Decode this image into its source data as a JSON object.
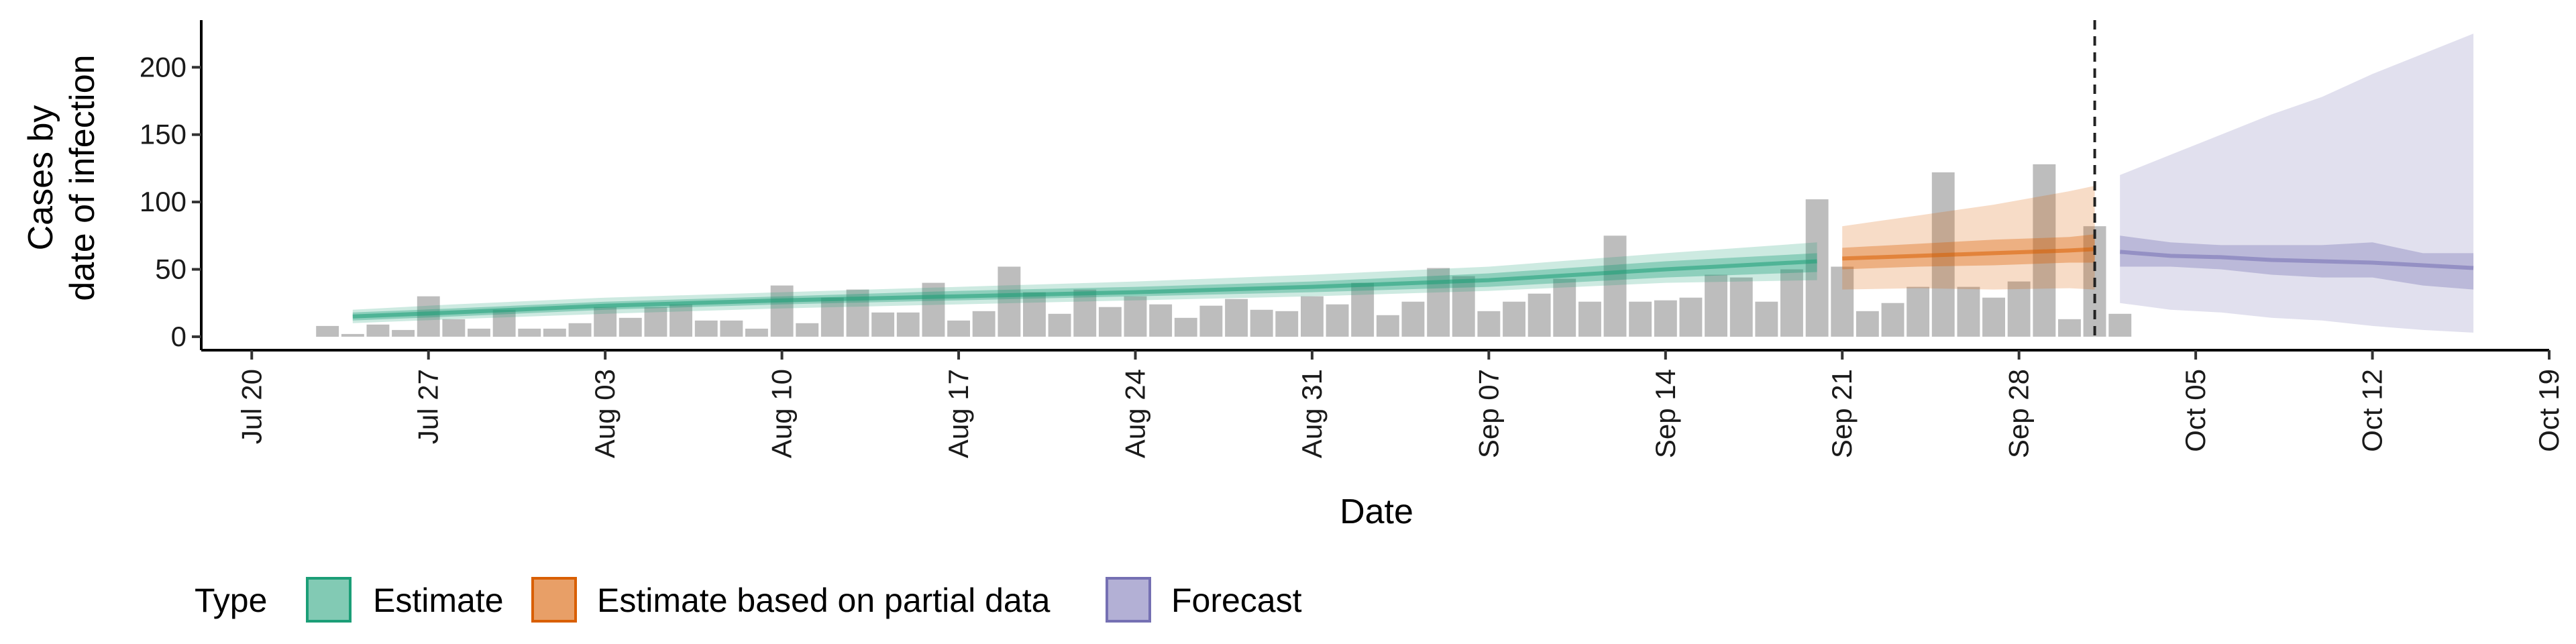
{
  "chart_data": {
    "type": "bar",
    "title": "",
    "xlabel": "Date",
    "ylabel_lines": [
      "Cases by",
      "date of infection"
    ],
    "x_ticks": [
      "Jul 20",
      "Jul 27",
      "Aug 03",
      "Aug 10",
      "Aug 17",
      "Aug 24",
      "Aug 31",
      "Sep 07",
      "Sep 14",
      "Sep 21",
      "Sep 28",
      "Oct 05",
      "Oct 12",
      "Oct 19"
    ],
    "y_ticks": [
      0,
      50,
      100,
      150,
      200
    ],
    "ylim": [
      -10,
      235
    ],
    "xlim": [
      "2020-07-18",
      "2020-10-19"
    ],
    "grid": false,
    "reference_line": {
      "date": "2020-10-01",
      "style": "dashed"
    },
    "colors": {
      "bars": "#bdbdbd",
      "estimate": "#1b9e77",
      "partial": "#d95f02",
      "forecast": "#7570b3"
    },
    "bars": {
      "start_date": "2020-07-23",
      "values": [
        8,
        2,
        9,
        5,
        30,
        13,
        6,
        20,
        6,
        6,
        10,
        22,
        14,
        22,
        24,
        12,
        12,
        6,
        38,
        10,
        29,
        35,
        18,
        18,
        40,
        12,
        19,
        52,
        33,
        17,
        35,
        22,
        30,
        24,
        14,
        23,
        28,
        20,
        19,
        30,
        24,
        40,
        16,
        26,
        51,
        45,
        19,
        26,
        32,
        43,
        26,
        75,
        26,
        27,
        29,
        46,
        44,
        26,
        50,
        102,
        52,
        19,
        25,
        37,
        122,
        37,
        29,
        41,
        128,
        13,
        82,
        17
      ]
    },
    "series": [
      {
        "name": "Estimate",
        "x": [
          "2020-07-24",
          "2020-07-28",
          "2020-08-03",
          "2020-08-10",
          "2020-08-17",
          "2020-08-24",
          "2020-08-31",
          "2020-09-07",
          "2020-09-14",
          "2020-09-20"
        ],
        "median": [
          15,
          18,
          23,
          27,
          30,
          33,
          37,
          42,
          50,
          56
        ],
        "lower_50": [
          12,
          15,
          20,
          24,
          27,
          30,
          33,
          37,
          44,
          48
        ],
        "upper_50": [
          18,
          21,
          26,
          30,
          34,
          37,
          41,
          47,
          56,
          62
        ],
        "lower_90": [
          10,
          13,
          17,
          21,
          24,
          27,
          30,
          34,
          40,
          42
        ],
        "upper_90": [
          20,
          24,
          29,
          33,
          37,
          41,
          46,
          52,
          62,
          70
        ]
      },
      {
        "name": "Estimate based on partial data",
        "x": [
          "2020-09-21",
          "2020-09-24",
          "2020-09-27",
          "2020-09-30",
          "2020-10-01"
        ],
        "median": [
          58,
          60,
          62,
          64,
          65
        ],
        "lower_50": [
          50,
          52,
          53,
          55,
          55
        ],
        "upper_50": [
          66,
          69,
          72,
          74,
          76
        ],
        "lower_90": [
          35,
          36,
          35,
          36,
          35
        ],
        "upper_90": [
          82,
          90,
          98,
          108,
          112
        ]
      },
      {
        "name": "Forecast",
        "x": [
          "2020-10-02",
          "2020-10-04",
          "2020-10-06",
          "2020-10-08",
          "2020-10-10",
          "2020-10-12",
          "2020-10-14",
          "2020-10-16"
        ],
        "median": [
          63,
          60,
          59,
          57,
          56,
          55,
          53,
          51
        ],
        "lower_50": [
          52,
          52,
          50,
          46,
          44,
          44,
          38,
          35
        ],
        "upper_50": [
          75,
          70,
          68,
          68,
          68,
          70,
          62,
          62
        ],
        "lower_90": [
          25,
          20,
          18,
          14,
          12,
          8,
          5,
          3
        ],
        "upper_90": [
          120,
          135,
          150,
          165,
          178,
          195,
          210,
          225
        ]
      }
    ],
    "legend": {
      "title": "Type",
      "placement": "bottom",
      "entries": [
        "Estimate",
        "Estimate based on partial data",
        "Forecast"
      ]
    }
  }
}
